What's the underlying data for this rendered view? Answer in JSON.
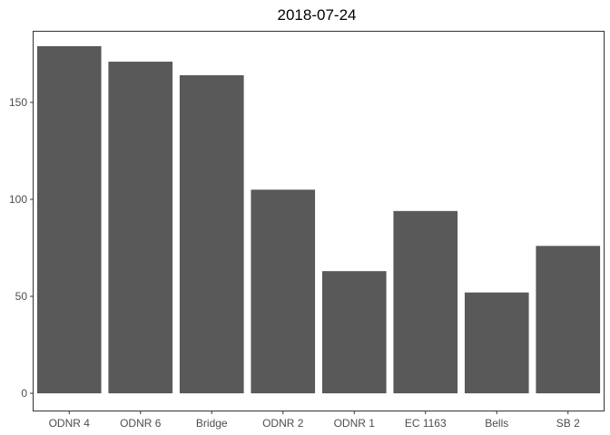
{
  "chart_data": {
    "type": "bar",
    "title": "2018-07-24",
    "xlabel": "",
    "ylabel": "",
    "categories": [
      "ODNR 4",
      "ODNR 6",
      "Bridge",
      "ODNR 2",
      "ODNR 1",
      "EC 1163",
      "Bells",
      "SB 2"
    ],
    "values": [
      179,
      171,
      164,
      105,
      63,
      94,
      52,
      76
    ],
    "ylim": [
      0,
      187
    ],
    "yticks": [
      0,
      50,
      100,
      150
    ],
    "grid": false,
    "legend": "none",
    "bar_color": "#595959"
  }
}
